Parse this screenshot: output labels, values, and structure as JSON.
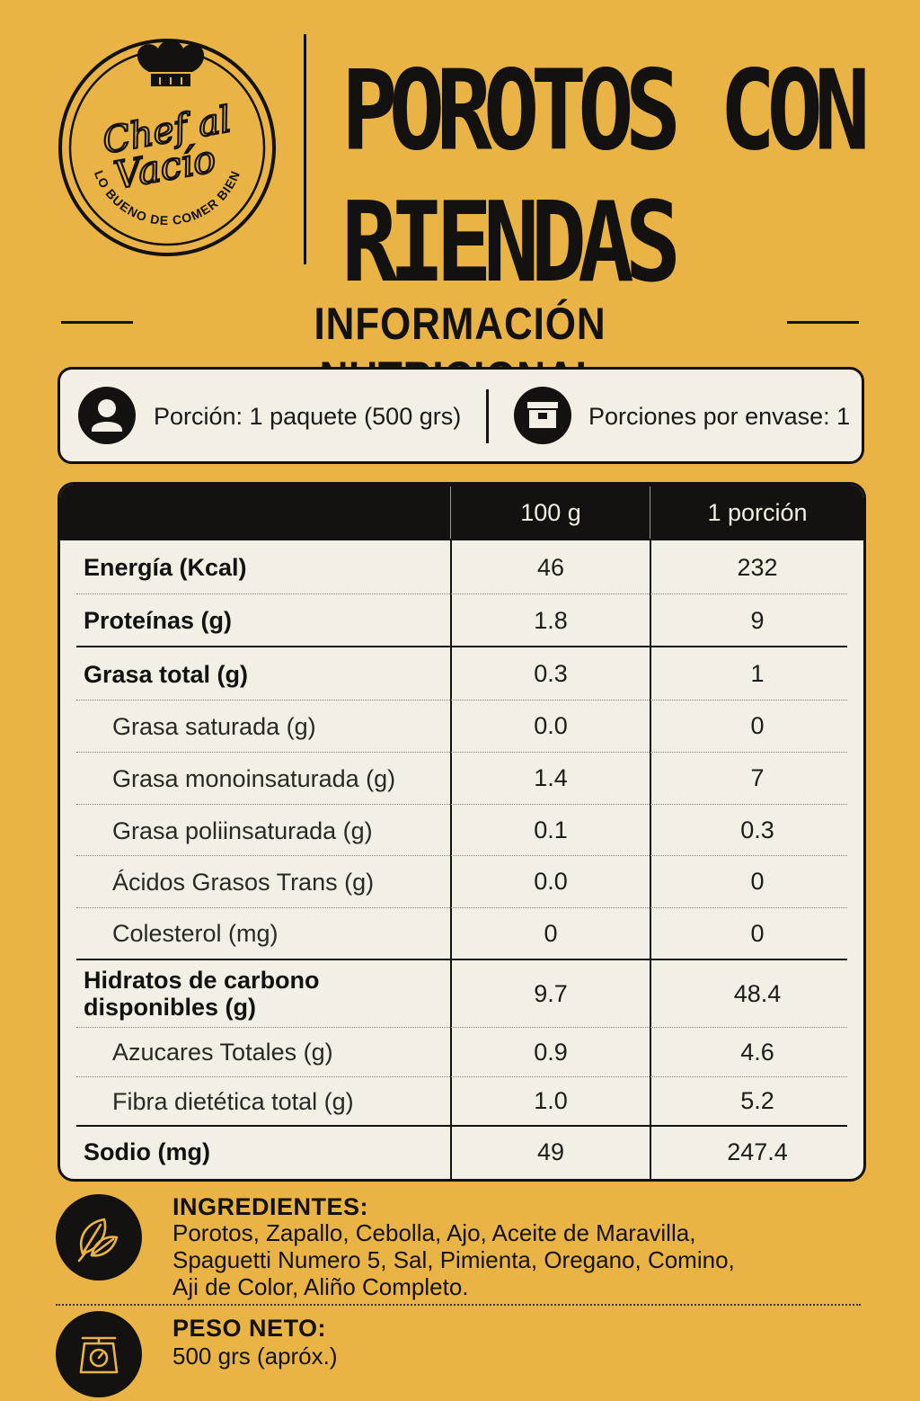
{
  "brand": {
    "name_line1": "Chef al",
    "name_line2": "Vacío",
    "tagline": "LO BUENO DE COMER BIEN"
  },
  "product": {
    "title_line1": "POROTOS CON",
    "title_line2": "RIENDAS"
  },
  "section_title": "INFORMACIÓN NUTRICIONAL",
  "serving": {
    "portion": "Porción: 1 paquete (500 grs)",
    "portions_per_pack": "Porciones por envase: 1",
    "portion_icon": "person-icon",
    "pack_icon": "box-icon"
  },
  "table": {
    "headers": [
      "",
      "100 g",
      "1 porción"
    ],
    "rows": [
      {
        "label": "Energía (Kcal)",
        "per100": "46",
        "portion": "232"
      },
      {
        "label": "Proteínas (g)",
        "per100": "1.8",
        "portion": "9"
      },
      {
        "label": "Grasa total (g)",
        "per100": "0.3",
        "portion": "1"
      },
      {
        "label": "Grasa saturada (g)",
        "per100": "0.0",
        "portion": "0"
      },
      {
        "label": "Grasa monoinsaturada (g)",
        "per100": "1.4",
        "portion": "7"
      },
      {
        "label": "Grasa poliinsaturada (g)",
        "per100": "0.1",
        "portion": "0.3"
      },
      {
        "label": "Ácidos Grasos Trans (g)",
        "per100": "0.0",
        "portion": "0"
      },
      {
        "label": "Colesterol (mg)",
        "per100": "0",
        "portion": "0"
      },
      {
        "label_line1": "Hidratos de carbono",
        "label_line2": "disponibles (g)",
        "per100": "9.7",
        "portion": "48.4"
      },
      {
        "label": "Azucares Totales (g)",
        "per100": "0.9",
        "portion": "4.6"
      },
      {
        "label": "Fibra dietética total (g)",
        "per100": "1.0",
        "portion": "5.2"
      },
      {
        "label": "Sodio (mg)",
        "per100": "49",
        "portion": "247.4"
      }
    ]
  },
  "ingredients": {
    "heading": "INGREDIENTES:",
    "line1": "Porotos, Zapallo, Cebolla, Ajo, Aceite de Maravilla,",
    "line2": "Spaguetti Numero 5, Sal, Pimienta, Oregano, Comino,",
    "line3": "Aji de Color, Aliño Completo.",
    "icon": "leaf-icon"
  },
  "net_weight": {
    "heading": "PESO NETO:",
    "value": "500 grs (apróx.)",
    "icon": "scale-icon"
  },
  "colors": {
    "background": "#E9B445",
    "ink": "#141210",
    "panel": "#F4EFE4",
    "icon_accent": "#E9B445"
  }
}
